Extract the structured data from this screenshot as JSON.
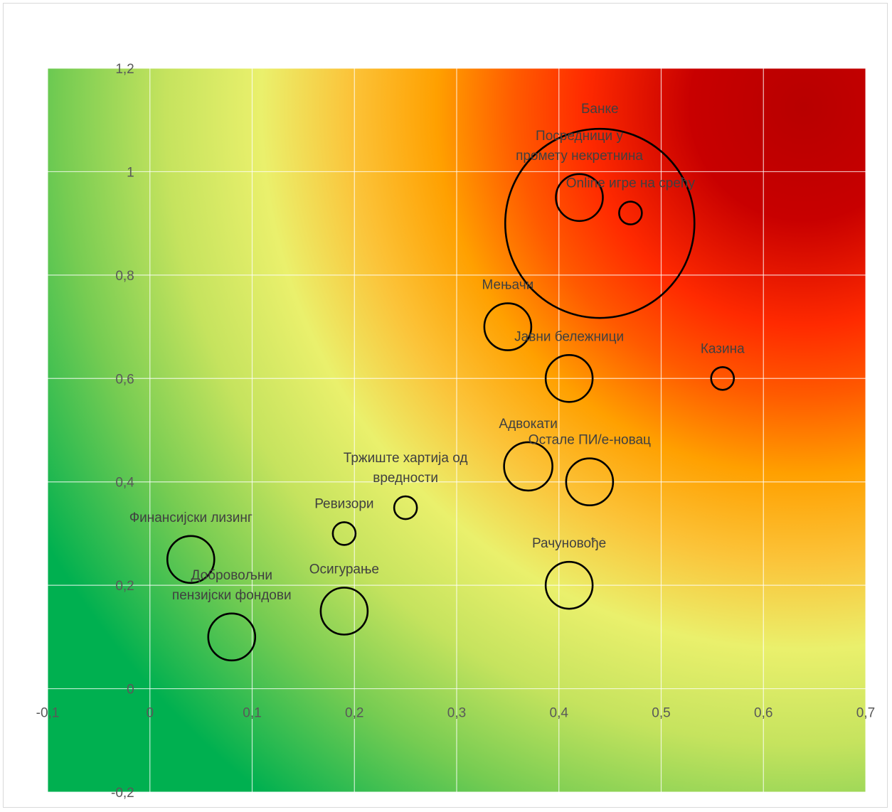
{
  "chart_data": {
    "type": "bubble",
    "title": "",
    "xlabel": "",
    "ylabel": "",
    "xlim": [
      -0.1,
      0.7
    ],
    "ylim": [
      -0.2,
      1.2
    ],
    "grid": true,
    "background": "radial heat gradient: green (low risk, bottom-left/bottom-right corners) through yellow and orange to red (high risk, top-right)",
    "colors": {
      "green": "#00b050",
      "light_green": "#92d050",
      "yellow": "#e8f06a",
      "orange": "#ffa500",
      "red_orange": "#ff2a00",
      "red": "#c00000",
      "bubble_outline": "#000000",
      "grid": "#ffffff"
    },
    "x_ticks": [
      "-0,1",
      "0",
      "0,1",
      "0,2",
      "0,3",
      "0,4",
      "0,5",
      "0,6",
      "0,7"
    ],
    "y_ticks": [
      "-0,2",
      "0",
      "0,2",
      "0,4",
      "0,6",
      "0,8",
      "1",
      "1,2"
    ],
    "points": [
      {
        "label": [
          "Банке"
        ],
        "x": 0.44,
        "y": 0.9,
        "size": 133
      },
      {
        "label": [
          "Посредници у",
          "промету некретнина"
        ],
        "x": 0.42,
        "y": 0.95,
        "size": 33
      },
      {
        "label": [
          "Online игре на срећу"
        ],
        "x": 0.47,
        "y": 0.92,
        "size": 16
      },
      {
        "label": [
          "Мењачи"
        ],
        "x": 0.35,
        "y": 0.7,
        "size": 33
      },
      {
        "label": [
          "Јавни бележници"
        ],
        "x": 0.41,
        "y": 0.6,
        "size": 33
      },
      {
        "label": [
          "Казина"
        ],
        "x": 0.56,
        "y": 0.6,
        "size": 16
      },
      {
        "label": [
          "Адвокати"
        ],
        "x": 0.37,
        "y": 0.43,
        "size": 34
      },
      {
        "label": [
          "Остале ПИ/е-новац"
        ],
        "x": 0.43,
        "y": 0.4,
        "size": 33
      },
      {
        "label": [
          "Тржиште хартија од",
          "вредности"
        ],
        "x": 0.25,
        "y": 0.35,
        "size": 16
      },
      {
        "label": [
          "Ревизори"
        ],
        "x": 0.19,
        "y": 0.3,
        "size": 16
      },
      {
        "label": [
          "Финансијски лизинг"
        ],
        "x": 0.04,
        "y": 0.25,
        "size": 33
      },
      {
        "label": [
          "Рачуновође"
        ],
        "x": 0.41,
        "y": 0.2,
        "size": 33
      },
      {
        "label": [
          "Осигурање"
        ],
        "x": 0.19,
        "y": 0.15,
        "size": 33
      },
      {
        "label": [
          "Добровољни",
          "пензијски фондови"
        ],
        "x": 0.08,
        "y": 0.1,
        "size": 33
      }
    ]
  }
}
